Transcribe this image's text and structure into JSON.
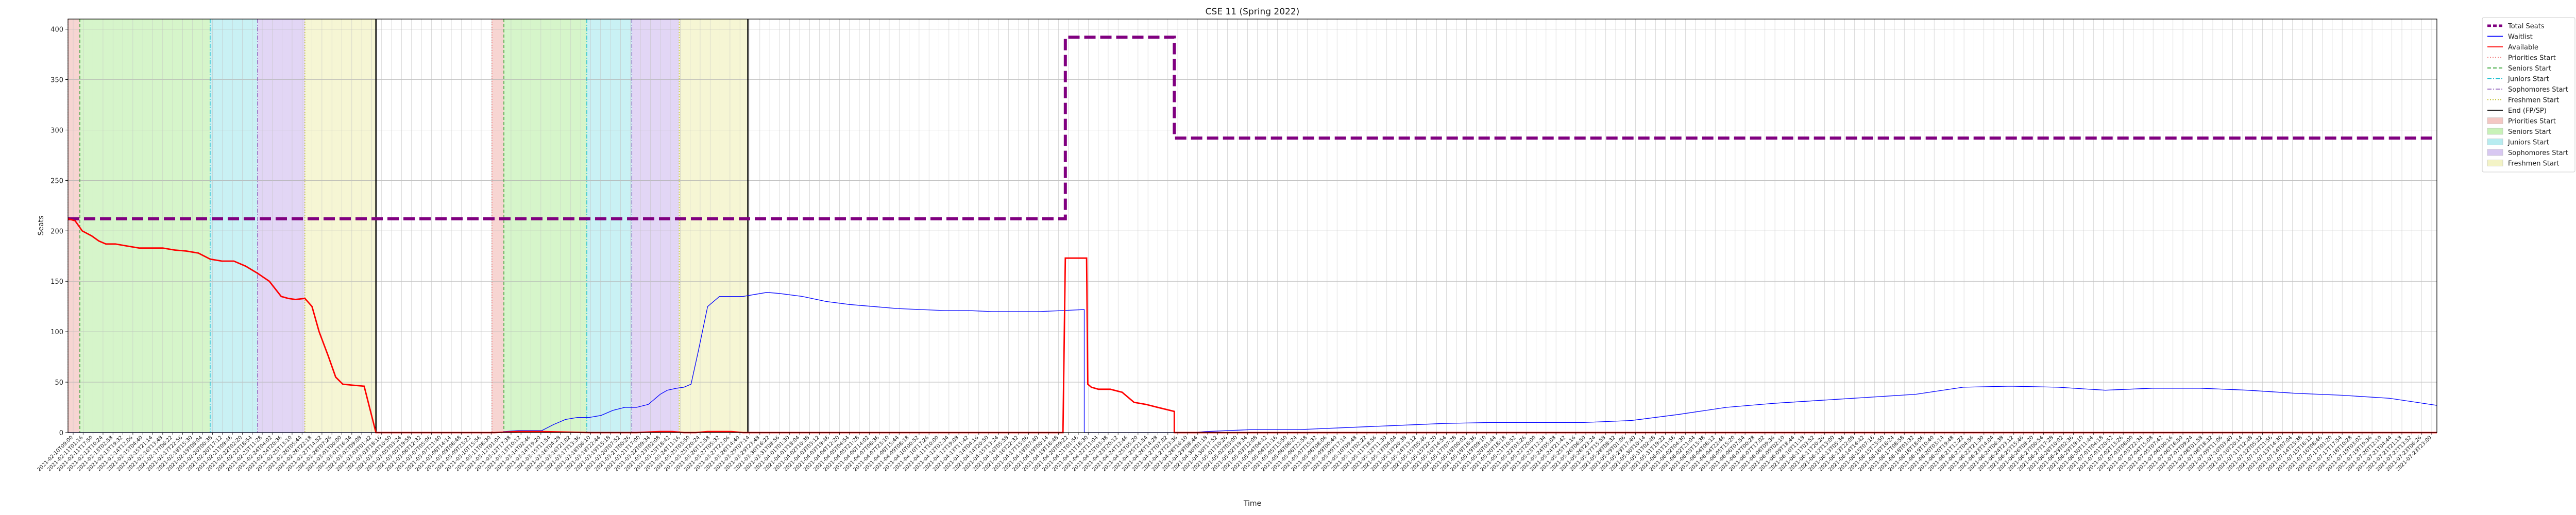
{
  "chart_data": {
    "type": "line",
    "title": "CSE 11 (Spring 2022)",
    "xlabel": "Time",
    "ylabel": "Seats",
    "ylim": [
      0,
      410
    ],
    "xlim": [
      0,
      100
    ],
    "yticks": [
      0,
      50,
      100,
      150,
      200,
      250,
      300,
      350,
      400
    ],
    "grid": true,
    "legend_position": "outside-right",
    "x_tick_labels": [
      "2021-02-10T09:00",
      "2021-02-11T01:16",
      "2021-02-11T17:50",
      "2021-02-12T10:24",
      "2021-02-13T02:58",
      "2021-02-13T19:32",
      "2021-02-14T12:06",
      "2021-02-15T04:40",
      "2021-02-15T21:14",
      "2021-02-16T13:48",
      "2021-02-17T06:22",
      "2021-02-17T22:56",
      "2021-02-18T15:30",
      "2021-02-19T08:04",
      "2021-02-20T00:38",
      "2021-02-20T17:12",
      "2021-02-21T09:46",
      "2021-02-22T02:20",
      "2021-02-22T18:54",
      "2021-02-23T11:28",
      "2021-02-24T04:02",
      "2021-02-24T20:36",
      "2021-02-25T13:10",
      "2021-02-26T05:44",
      "2021-02-26T22:18",
      "2021-02-27T14:52",
      "2021-02-28T07:26",
      "2021-03-01T00:00",
      "2021-03-01T16:34",
      "2021-03-02T09:08",
      "2021-03-03T01:42",
      "2021-03-03T18:16",
      "2021-03-04T10:50",
      "2021-03-05T03:24",
      "2021-03-05T19:58",
      "2021-03-06T12:32",
      "2021-03-07T05:06",
      "2021-03-07T21:40",
      "2021-03-08T14:14",
      "2021-03-09T06:48",
      "2021-03-09T23:22",
      "2021-03-10T15:56",
      "2021-03-11T08:30",
      "2021-03-12T01:04",
      "2021-03-12T17:38",
      "2021-03-13T10:12",
      "2021-03-14T02:46",
      "2021-03-14T19:20",
      "2021-03-15T11:54",
      "2021-03-16T04:28",
      "2021-03-16T21:02",
      "2021-03-17T13:36",
      "2021-03-18T06:10",
      "2021-03-18T22:44",
      "2021-03-19T15:18",
      "2021-03-20T07:52",
      "2021-03-21T00:26",
      "2021-03-21T17:00",
      "2021-03-22T09:34",
      "2021-03-23T02:08",
      "2021-03-23T18:42",
      "2021-03-24T11:16",
      "2021-03-25T03:50",
      "2021-03-25T20:24",
      "2021-03-26T12:58",
      "2021-03-27T05:32",
      "2021-03-27T22:06",
      "2021-03-28T14:40",
      "2021-03-29T07:14",
      "2021-03-29T23:48",
      "2021-03-30T16:22",
      "2021-03-31T08:56",
      "2021-04-01T01:30",
      "2021-04-01T18:04",
      "2021-04-02T10:38",
      "2021-04-03T03:12",
      "2021-04-03T19:46",
      "2021-04-04T12:20",
      "2021-04-05T04:54",
      "2021-04-05T21:28",
      "2021-04-06T14:02",
      "2021-04-07T06:36",
      "2021-04-07T23:10",
      "2021-04-08T15:44",
      "2021-04-09T08:18",
      "2021-04-10T00:52",
      "2021-04-10T17:26",
      "2021-04-11T10:00",
      "2021-04-12T02:34",
      "2021-04-12T19:08",
      "2021-04-13T11:42",
      "2021-04-14T04:16",
      "2021-04-14T20:50",
      "2021-04-15T13:24",
      "2021-04-16T05:58",
      "2021-04-16T22:32",
      "2021-04-17T15:06",
      "2021-04-18T07:40",
      "2021-04-19T00:14",
      "2021-04-19T16:48",
      "2021-04-20T09:22",
      "2021-04-21T01:56",
      "2021-04-21T18:30",
      "2021-04-22T11:04",
      "2021-04-23T03:38",
      "2021-04-23T20:12",
      "2021-04-24T12:46",
      "2021-04-25T05:20",
      "2021-04-25T21:54",
      "2021-04-26T14:28",
      "2021-04-27T07:02",
      "2021-04-27T23:36",
      "2021-04-28T16:10",
      "2021-04-29T08:44",
      "2021-04-30T01:18",
      "2021-04-30T17:52",
      "2021-05-01T10:26",
      "2021-05-02T03:00",
      "2021-05-02T19:34",
      "2021-05-03T12:08",
      "2021-05-04T04:42",
      "2021-05-04T21:16",
      "2021-05-05T13:50",
      "2021-05-06T06:24",
      "2021-05-06T22:58",
      "2021-05-07T15:32",
      "2021-05-08T08:06",
      "2021-05-09T00:40",
      "2021-05-09T17:14",
      "2021-05-10T09:48",
      "2021-05-11T02:22",
      "2021-05-11T18:56",
      "2021-05-12T11:30",
      "2021-05-13T04:04",
      "2021-05-13T20:38",
      "2021-05-14T13:12",
      "2021-05-15T05:46",
      "2021-05-15T22:20",
      "2021-05-16T14:54",
      "2021-05-17T07:28",
      "2021-05-18T00:02",
      "2021-05-18T16:36",
      "2021-05-19T09:10",
      "2021-05-20T01:44",
      "2021-05-20T18:18",
      "2021-05-21T10:52",
      "2021-05-22T03:26",
      "2021-05-22T20:00",
      "2021-05-23T12:34",
      "2021-05-24T05:08",
      "2021-05-24T21:42",
      "2021-05-25T14:16",
      "2021-05-26T06:50",
      "2021-05-26T23:24",
      "2021-05-27T15:58",
      "2021-05-28T08:32",
      "2021-05-29T01:06",
      "2021-05-29T17:40",
      "2021-05-30T10:14",
      "2021-05-31T02:48",
      "2021-05-31T19:22",
      "2021-06-01T11:56",
      "2021-06-02T04:30",
      "2021-06-02T21:04",
      "2021-06-03T13:38",
      "2021-06-04T06:12",
      "2021-06-04T22:46",
      "2021-06-05T15:20",
      "2021-06-06T07:54",
      "2021-06-07T00:28",
      "2021-06-07T17:02",
      "2021-06-08T09:36",
      "2021-06-09T02:10",
      "2021-06-09T18:44",
      "2021-06-10T11:18",
      "2021-06-11T03:52",
      "2021-06-11T20:26",
      "2021-06-12T13:00",
      "2021-06-13T05:34",
      "2021-06-13T22:08",
      "2021-06-14T14:42",
      "2021-06-15T07:16",
      "2021-06-15T23:50",
      "2021-06-16T16:24",
      "2021-06-17T08:58",
      "2021-06-18T01:32",
      "2021-06-18T18:06",
      "2021-06-19T10:40",
      "2021-06-20T03:14",
      "2021-06-20T19:48",
      "2021-06-21T12:22",
      "2021-06-22T04:56",
      "2021-06-22T21:30",
      "2021-06-23T14:04",
      "2021-06-24T06:38",
      "2021-06-24T23:12",
      "2021-06-25T15:46",
      "2021-06-26T08:20",
      "2021-06-27T00:54",
      "2021-06-27T17:28",
      "2021-06-28T10:02",
      "2021-06-29T02:36",
      "2021-06-29T19:10",
      "2021-06-30T11:44",
      "2021-07-01T04:18",
      "2021-07-01T20:52",
      "2021-07-02T13:26",
      "2021-07-03T06:00",
      "2021-07-03T22:34",
      "2021-07-04T15:08",
      "2021-07-05T07:42",
      "2021-07-06T00:16",
      "2021-07-06T16:50",
      "2021-07-07T09:24",
      "2021-07-08T01:58",
      "2021-07-08T18:32",
      "2021-07-09T11:06",
      "2021-07-10T03:40",
      "2021-07-10T20:14",
      "2021-07-11T12:48",
      "2021-07-12T05:22",
      "2021-07-12T21:56",
      "2021-07-13T14:30",
      "2021-07-14T07:04",
      "2021-07-14T23:38",
      "2021-07-15T16:12",
      "2021-07-16T08:46",
      "2021-07-17T01:20",
      "2021-07-17T17:54",
      "2021-07-18T10:28",
      "2021-07-19T03:02",
      "2021-07-19T19:36",
      "2021-07-20T12:10",
      "2021-07-21T04:44",
      "2021-07-21T21:18",
      "2021-07-22T13:52",
      "2021-07-23T06:26",
      "2021-07-23T23:00"
    ],
    "series": [
      {
        "name": "Total Seats",
        "color": "#800080",
        "style": "dashed",
        "x": [
          0,
          42.1,
          42.1,
          46.7,
          46.7,
          100
        ],
        "y": [
          212,
          212,
          392,
          392,
          292,
          292
        ]
      },
      {
        "name": "Waitlist",
        "color": "#0000ff",
        "style": "solid",
        "x": [
          0,
          18.3,
          18.4,
          19.0,
          19.5,
          20.0,
          20.5,
          21.0,
          21.5,
          22.0,
          22.5,
          23.0,
          23.5,
          24.0,
          24.5,
          25.0,
          25.3,
          25.7,
          26.0,
          26.3,
          26.6,
          27.0,
          27.5,
          28.0,
          28.5,
          29.0,
          29.5,
          30.0,
          31.0,
          32.0,
          33.0,
          34.0,
          35.0,
          36.0,
          37.0,
          38.0,
          39.0,
          40.0,
          41.0,
          42.0,
          42.9,
          42.9,
          47.5,
          48.0,
          50.0,
          52.0,
          54.0,
          56.0,
          58.0,
          60.0,
          62.0,
          64.0,
          66.0,
          68.0,
          70.0,
          72.0,
          74.0,
          76.0,
          78.0,
          80.0,
          82.0,
          84.0,
          86.0,
          88.0,
          90.0,
          92.0,
          94.0,
          96.0,
          98.0,
          100.0
        ],
        "y": [
          0,
          0,
          1,
          2,
          2,
          2,
          8,
          13,
          15,
          15,
          17,
          22,
          25,
          25,
          28,
          38,
          42,
          44,
          45,
          48,
          80,
          125,
          135,
          135,
          135,
          137,
          139,
          138,
          135,
          130,
          127,
          125,
          123,
          122,
          121,
          121,
          120,
          120,
          120,
          121,
          122,
          0,
          0,
          1,
          3,
          3,
          5,
          7,
          9,
          10,
          10,
          10,
          12,
          18,
          25,
          29,
          32,
          35,
          38,
          45,
          46,
          45,
          42,
          44,
          44,
          42,
          39,
          37,
          34,
          27
        ]
      },
      {
        "name": "Available",
        "color": "#ff0000",
        "style": "solid",
        "x": [
          0,
          0.3,
          0.6,
          1.0,
          1.3,
          1.6,
          2.0,
          2.5,
          3.0,
          3.5,
          4.0,
          4.5,
          5.0,
          5.5,
          6.0,
          6.5,
          7.0,
          7.5,
          8.0,
          8.5,
          9.0,
          9.3,
          9.6,
          10.0,
          10.3,
          10.6,
          11.0,
          11.3,
          11.6,
          12.0,
          12.5,
          13.0,
          13.5,
          14.0,
          18.0,
          19.0,
          20.0,
          22.0,
          24.0,
          25.0,
          25.5,
          26.0,
          26.5,
          27.0,
          27.5,
          28.0,
          28.5,
          29.0,
          40.0,
          42.0,
          42.1,
          43.0,
          43.05,
          43.2,
          43.5,
          44.0,
          44.5,
          45.0,
          45.5,
          46.0,
          46.7,
          46.7,
          100
        ],
        "y": [
          212,
          210,
          200,
          195,
          190,
          187,
          187,
          185,
          183,
          183,
          183,
          181,
          180,
          178,
          172,
          170,
          170,
          165,
          158,
          150,
          135,
          133,
          132,
          133,
          125,
          100,
          75,
          55,
          48,
          47,
          46,
          0,
          0,
          0,
          0,
          1,
          1,
          0,
          0,
          1,
          1,
          0,
          0,
          1,
          1,
          1,
          0,
          0,
          0,
          0,
          173,
          173,
          48,
          45,
          43,
          43,
          40,
          30,
          28,
          25,
          21,
          0,
          0
        ]
      }
    ],
    "phases": [
      {
        "name": "Priorities Start",
        "x": 0,
        "x_end": 0.5,
        "fill": "#f4c7c3"
      },
      {
        "name": "Seniors Start",
        "x": 0.5,
        "x_end": 6.0,
        "fill": "#c8f2b8"
      },
      {
        "name": "Juniors Start",
        "x": 6.0,
        "x_end": 8.0,
        "fill": "#b7ecf0"
      },
      {
        "name": "Sophomores Start",
        "x": 8.0,
        "x_end": 10.0,
        "fill": "#d8c8f2"
      },
      {
        "name": "Freshmen Start",
        "x": 10.0,
        "x_end": 13.0,
        "fill": "#f3f3c6"
      },
      {
        "name": "End (FP/SP)",
        "x": 13.0
      },
      {
        "name": "Priorities Start",
        "x": 17.9,
        "x_end": 18.4,
        "fill": "#f4c7c3"
      },
      {
        "name": "Seniors Start",
        "x": 18.4,
        "x_end": 21.9,
        "fill": "#c8f2b8"
      },
      {
        "name": "Juniors Start",
        "x": 21.9,
        "x_end": 23.8,
        "fill": "#b7ecf0"
      },
      {
        "name": "Sophomores Start",
        "x": 23.8,
        "x_end": 25.8,
        "fill": "#d8c8f2"
      },
      {
        "name": "Freshmen Start",
        "x": 25.8,
        "x_end": 28.7,
        "fill": "#f3f3c6"
      },
      {
        "name": "End (FP/SP)",
        "x": 28.7
      }
    ],
    "legend": [
      {
        "label": "Total Seats",
        "kind": "line",
        "color": "#800080",
        "dash": "dashed",
        "bold": true
      },
      {
        "label": "Waitlist",
        "kind": "line",
        "color": "#0000ff",
        "dash": "solid"
      },
      {
        "label": "Available",
        "kind": "line",
        "color": "#ff0000",
        "dash": "solid"
      },
      {
        "label": "Priorities Start",
        "kind": "line",
        "color": "#f08080",
        "dash": "dotted"
      },
      {
        "label": "Seniors Start",
        "kind": "line",
        "color": "#2ca02c",
        "dash": "dashed"
      },
      {
        "label": "Juniors Start",
        "kind": "line",
        "color": "#17becf",
        "dash": "dashdot"
      },
      {
        "label": "Sophomores Start",
        "kind": "line",
        "color": "#9467bd",
        "dash": "dashdot"
      },
      {
        "label": "Freshmen Start",
        "kind": "line",
        "color": "#bcbd22",
        "dash": "dotted"
      },
      {
        "label": "End (FP/SP)",
        "kind": "line",
        "color": "#000000",
        "dash": "solid"
      },
      {
        "label": "Priorities Start",
        "kind": "patch",
        "color": "#f4c7c3"
      },
      {
        "label": "Seniors Start",
        "kind": "patch",
        "color": "#c8f2b8"
      },
      {
        "label": "Juniors Start",
        "kind": "patch",
        "color": "#b7ecf0"
      },
      {
        "label": "Sophomores Start",
        "kind": "patch",
        "color": "#d8c8f2"
      },
      {
        "label": "Freshmen Start",
        "kind": "patch",
        "color": "#f3f3c6"
      }
    ]
  }
}
